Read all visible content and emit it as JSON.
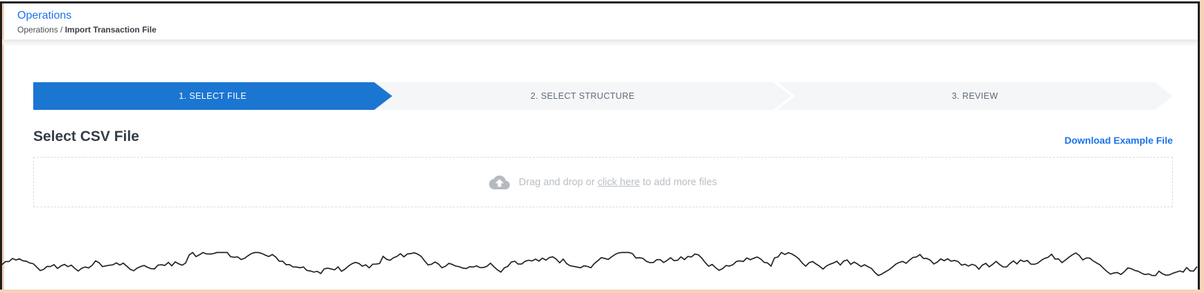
{
  "header": {
    "title": "Operations",
    "breadcrumb": {
      "root": "Operations",
      "separator": " / ",
      "current": "Import Transaction File"
    }
  },
  "stepper": {
    "steps": [
      {
        "label": "1. SELECT FILE",
        "state": "active"
      },
      {
        "label": "2. SELECT STRUCTURE",
        "state": "upcoming"
      },
      {
        "label": "3. REVIEW",
        "state": "upcoming"
      }
    ]
  },
  "main": {
    "heading": "Select CSV File",
    "download_link_label": "Download Example File",
    "dropzone": {
      "icon": "cloud-upload-icon",
      "text_before": "Drag and drop or ",
      "link_text": "click here",
      "text_after": " to add more files"
    }
  },
  "colors": {
    "step_active_bg": "#1b76d2",
    "step_inactive_bg": "#f4f6f8",
    "link_blue": "#1a73e8",
    "title_blue": "#1a73e8",
    "muted_text": "#b9bfc5",
    "frame_accent": "#f6d2b8"
  }
}
